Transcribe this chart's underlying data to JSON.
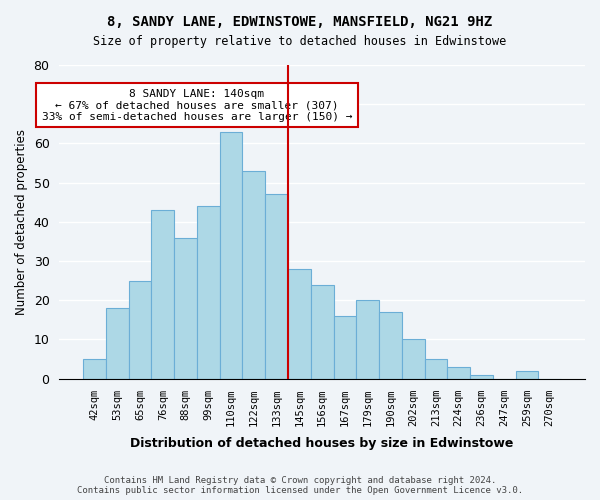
{
  "title": "8, SANDY LANE, EDWINSTOWE, MANSFIELD, NG21 9HZ",
  "subtitle": "Size of property relative to detached houses in Edwinstowe",
  "xlabel": "Distribution of detached houses by size in Edwinstowe",
  "ylabel": "Number of detached properties",
  "bin_labels": [
    "42sqm",
    "53sqm",
    "65sqm",
    "76sqm",
    "88sqm",
    "99sqm",
    "110sqm",
    "122sqm",
    "133sqm",
    "145sqm",
    "156sqm",
    "167sqm",
    "179sqm",
    "190sqm",
    "202sqm",
    "213sqm",
    "224sqm",
    "236sqm",
    "247sqm",
    "259sqm",
    "270sqm"
  ],
  "bin_values": [
    5,
    18,
    25,
    43,
    36,
    44,
    63,
    53,
    47,
    28,
    24,
    16,
    20,
    17,
    10,
    5,
    3,
    1,
    0,
    2,
    0
  ],
  "bar_color": "#add8e6",
  "bar_edge_color": "#6baed6",
  "vline_x_index": 9,
  "vline_color": "#cc0000",
  "annotation_title": "8 SANDY LANE: 140sqm",
  "annotation_line1": "← 67% of detached houses are smaller (307)",
  "annotation_line2": "33% of semi-detached houses are larger (150) →",
  "annotation_box_color": "#ffffff",
  "annotation_box_edge": "#cc0000",
  "ylim": [
    0,
    80
  ],
  "footer_line1": "Contains HM Land Registry data © Crown copyright and database right 2024.",
  "footer_line2": "Contains public sector information licensed under the Open Government Licence v3.0.",
  "background_color": "#f0f4f8"
}
